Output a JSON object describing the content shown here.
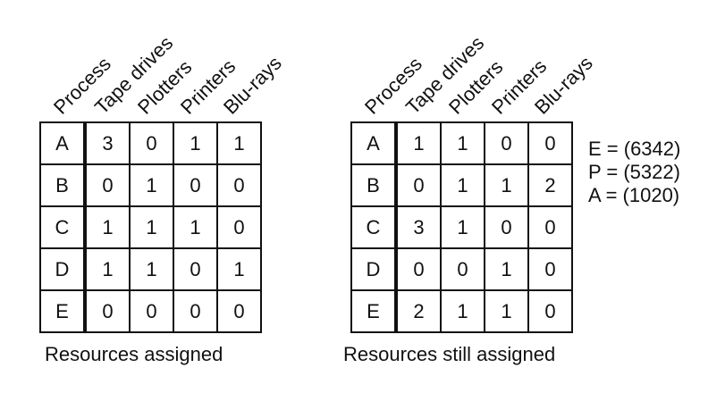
{
  "headers": [
    "Process",
    "Tape drives",
    "Plotters",
    "Printers",
    "Blu-rays"
  ],
  "assigned": {
    "caption": "Resources assigned",
    "rows": [
      {
        "proc": "A",
        "vals": [
          "3",
          "0",
          "1",
          "1"
        ]
      },
      {
        "proc": "B",
        "vals": [
          "0",
          "1",
          "0",
          "0"
        ]
      },
      {
        "proc": "C",
        "vals": [
          "1",
          "1",
          "1",
          "0"
        ]
      },
      {
        "proc": "D",
        "vals": [
          "1",
          "1",
          "0",
          "1"
        ]
      },
      {
        "proc": "E",
        "vals": [
          "0",
          "0",
          "0",
          "0"
        ]
      }
    ]
  },
  "still_needed": {
    "caption": "Resources still assigned",
    "rows": [
      {
        "proc": "A",
        "vals": [
          "1",
          "1",
          "0",
          "0"
        ]
      },
      {
        "proc": "B",
        "vals": [
          "0",
          "1",
          "1",
          "2"
        ]
      },
      {
        "proc": "C",
        "vals": [
          "3",
          "1",
          "0",
          "0"
        ]
      },
      {
        "proc": "D",
        "vals": [
          "0",
          "0",
          "1",
          "0"
        ]
      },
      {
        "proc": "E",
        "vals": [
          "2",
          "1",
          "1",
          "0"
        ]
      }
    ]
  },
  "vectors": [
    {
      "text": "E = (6342)"
    },
    {
      "text": "P = (5322)"
    },
    {
      "text": "A = (1020)"
    }
  ]
}
